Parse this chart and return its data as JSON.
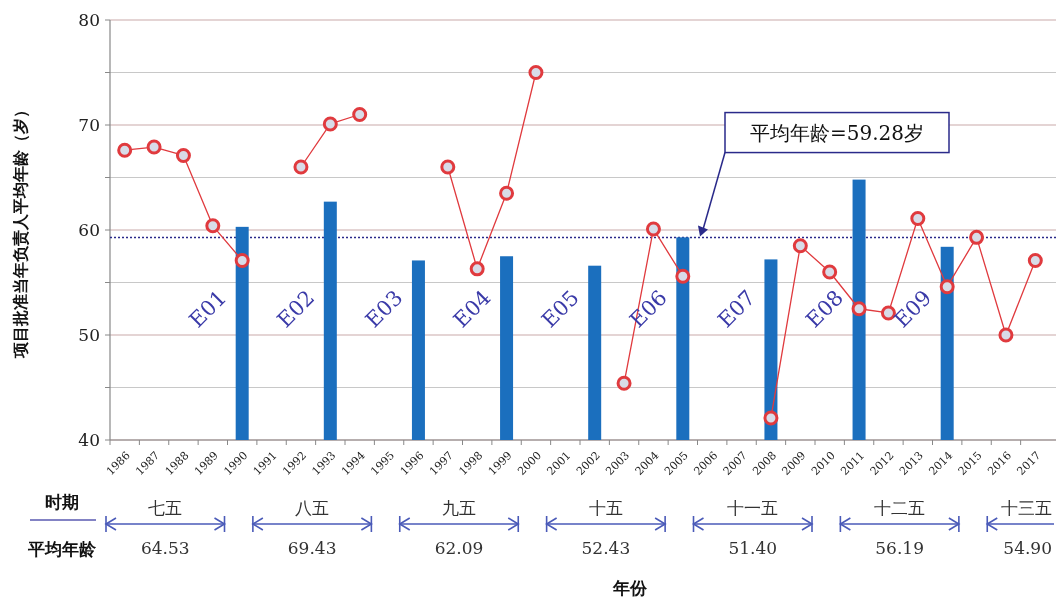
{
  "chart_data": {
    "type": "bar",
    "ylabel": "项目批准当年负责人平均年龄（岁）",
    "categories": [
      "1986",
      "1987",
      "1988",
      "1989",
      "1990",
      "1991",
      "1992",
      "1993",
      "1994",
      "1995",
      "1996",
      "1997",
      "1998",
      "1999",
      "2000",
      "2001",
      "2002",
      "2003",
      "2004",
      "2005",
      "2006",
      "2007",
      "2008",
      "2009",
      "2010",
      "2011",
      "2012",
      "2013",
      "2014",
      "2015",
      "2016",
      "2017"
    ],
    "series": [
      {
        "color": "#1b6fbe",
        "values": [
          null,
          null,
          null,
          null,
          60.3,
          null,
          null,
          62.7,
          null,
          null,
          57.1,
          null,
          null,
          57.5,
          null,
          null,
          56.6,
          null,
          null,
          59.3,
          null,
          null,
          57.2,
          null,
          null,
          64.8,
          null,
          null,
          58.4,
          null,
          null,
          null
        ]
      },
      {
        "type": "line",
        "color": "#e03a3e",
        "marker": "circle",
        "values": [
          67.6,
          67.9,
          67.1,
          60.4,
          57.1,
          null,
          66.0,
          70.1,
          71.0,
          null,
          null,
          66.0,
          56.3,
          63.5,
          75.0,
          null,
          null,
          45.4,
          60.1,
          55.6,
          null,
          null,
          42.1,
          58.5,
          56.0,
          52.5,
          52.1,
          61.1,
          54.6,
          59.3,
          50.0,
          57.1
        ]
      }
    ],
    "ylim": [
      40,
      80
    ],
    "yticks": [
      40,
      {
        "value": 45,
        "label": null
      },
      50,
      {
        "value": 55,
        "label": null
      },
      60,
      {
        "value": 65,
        "label": null
      },
      70,
      {
        "value": 75,
        "label": null
      },
      80
    ],
    "grid": "y",
    "ref_lines": [
      {
        "axis": "y",
        "value": 59.28,
        "color": "#2a2a8a",
        "line_style": "dotted"
      }
    ],
    "annotations": [
      "平均年龄=59.28岁",
      "E01",
      "E02",
      "E03",
      "E04",
      "E05",
      "E06",
      "E07",
      "E08",
      "E09",
      "时期",
      "平均年龄",
      "七五",
      "64.53",
      "八五",
      "69.43",
      "九五",
      "62.09",
      "十五",
      "52.43",
      "十一五",
      "51.40",
      "十二五",
      "56.19",
      "十三五",
      "54.90",
      "年份"
    ]
  }
}
